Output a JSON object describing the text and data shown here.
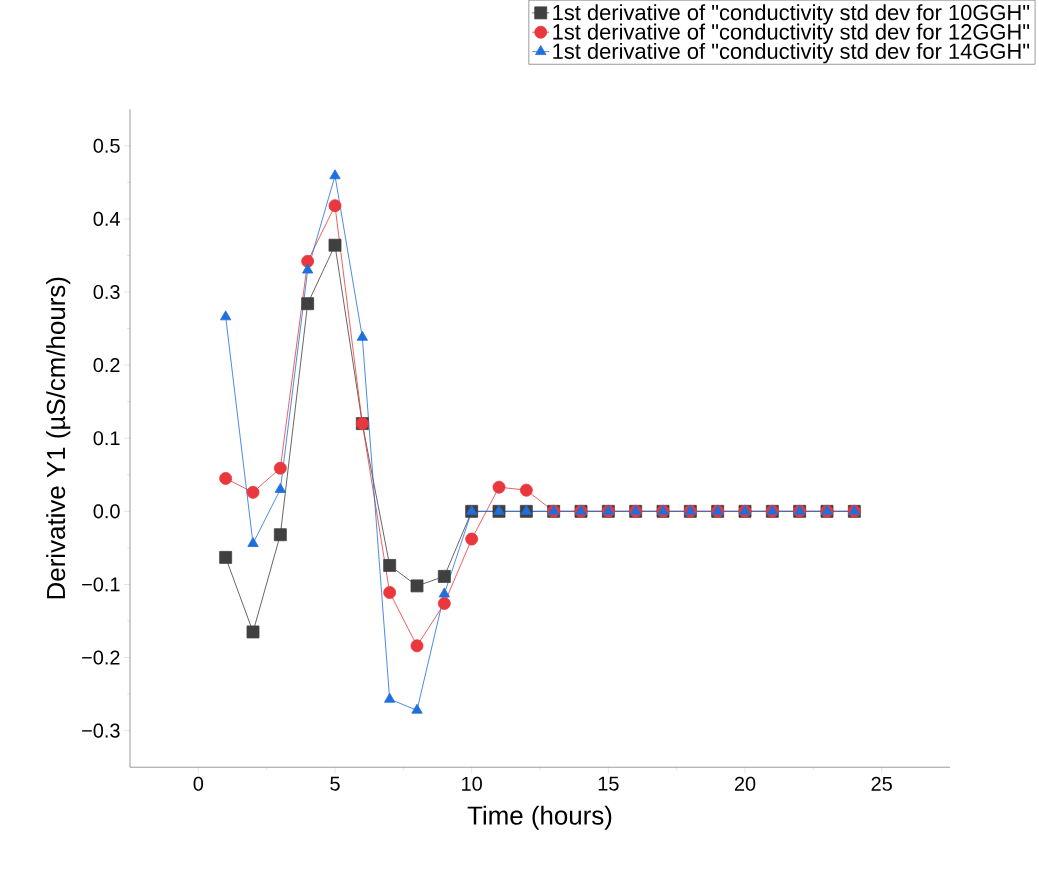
{
  "chart_data": {
    "type": "line",
    "xlabel": "Time (hours)",
    "ylabel": "Derivative Y1 (µS/cm/hours)",
    "x": [
      1,
      2,
      3,
      4,
      5,
      6,
      7,
      8,
      9,
      10,
      11,
      12,
      13,
      14,
      15,
      16,
      17,
      18,
      19,
      20,
      21,
      22,
      23,
      24
    ],
    "series": [
      {
        "name": "1st derivative of \"conductivity std dev for 10GGH\"",
        "color": "#404040",
        "marker": "square",
        "values": [
          -0.063,
          -0.165,
          -0.032,
          0.284,
          0.364,
          0.12,
          -0.074,
          -0.102,
          -0.089,
          0,
          0,
          0,
          0,
          0,
          0,
          0,
          0,
          0,
          0,
          0,
          0,
          0,
          0,
          0
        ]
      },
      {
        "name": "1st derivative of \"conductivity std dev for 12GGH\"",
        "color": "#e8383d",
        "marker": "circle",
        "values": [
          0.045,
          0.026,
          0.059,
          0.342,
          0.418,
          0.12,
          -0.111,
          -0.184,
          -0.126,
          -0.038,
          0.033,
          0.029,
          0,
          0,
          0,
          0,
          0,
          0,
          0,
          0,
          0,
          0,
          0,
          0
        ]
      },
      {
        "name": "1st derivative of \"conductivity std dev for 14GGH\"",
        "color": "#1f6fdc",
        "marker": "triangle",
        "values": [
          0.266,
          -0.044,
          0.03,
          0.33,
          0.459,
          0.238,
          -0.257,
          -0.272,
          -0.113,
          0,
          0,
          0,
          0,
          0,
          0,
          0,
          0,
          0,
          0,
          0,
          0,
          0,
          0,
          0
        ]
      }
    ],
    "xlim": [
      -2.5,
      27.5
    ],
    "ylim": [
      -0.35,
      0.55
    ],
    "xticks": [
      0,
      5,
      10,
      15,
      20,
      25
    ],
    "yticks": [
      {
        "value": -0.3,
        "label": "−0.3"
      },
      {
        "value": -0.2,
        "label": "−0.2"
      },
      {
        "value": -0.1,
        "label": "−0.1"
      },
      {
        "value": 0,
        "label": "0.0"
      },
      {
        "value": 0.1,
        "label": "0.1"
      },
      {
        "value": 0.2,
        "label": "0.2"
      },
      {
        "value": 0.3,
        "label": "0.3"
      },
      {
        "value": 0.4,
        "label": "0.4"
      },
      {
        "value": 0.5,
        "label": "0.5"
      }
    ],
    "grid": false,
    "legend": "top right",
    "line_style": "solid"
  }
}
